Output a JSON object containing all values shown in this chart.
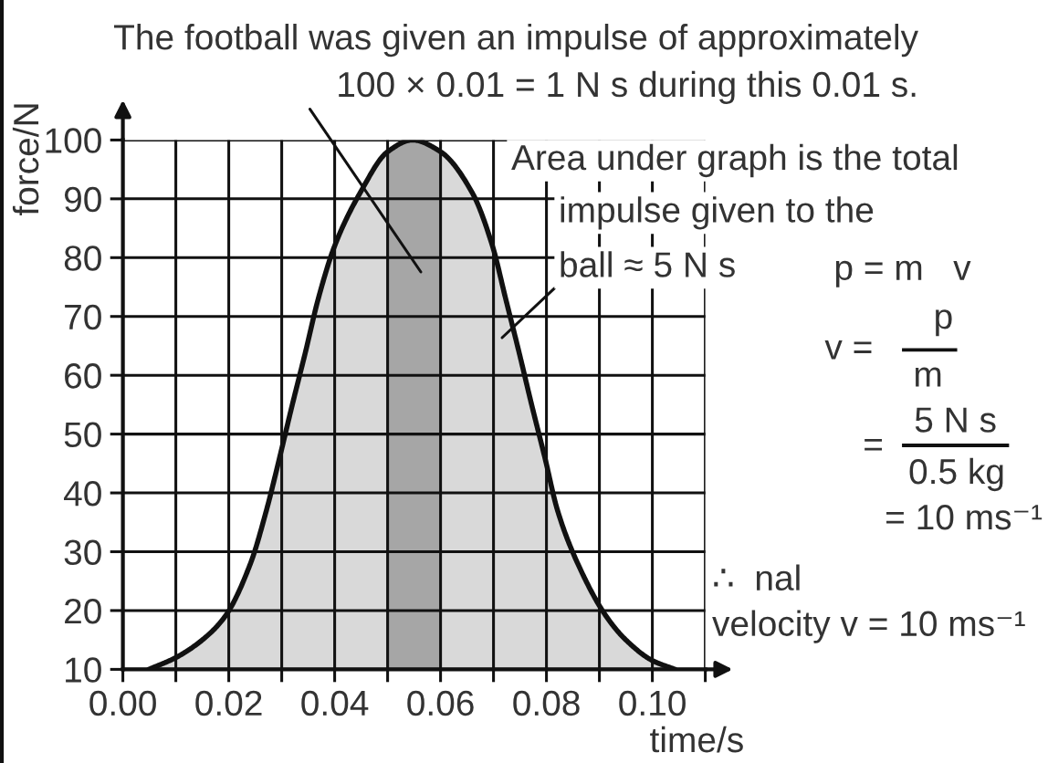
{
  "chart_data": {
    "type": "area",
    "xlabel": "time/s",
    "ylabel": "force/N",
    "x": [
      0.0049,
      0.01,
      0.015,
      0.0193,
      0.0241,
      0.0271,
      0.0296,
      0.032,
      0.0345,
      0.0369,
      0.04,
      0.0448,
      0.05,
      0.0547,
      0.06,
      0.066,
      0.0698,
      0.0723,
      0.0748,
      0.0772,
      0.0797,
      0.0821,
      0.0859,
      0.0913,
      0.095,
      0.1,
      0.1043
    ],
    "values": [
      10,
      12,
      15,
      19,
      28,
      37,
      46,
      55,
      64,
      73,
      82,
      91,
      98,
      100,
      98,
      91,
      82,
      73,
      64,
      55,
      46,
      37,
      28,
      19,
      15,
      11.5,
      10
    ],
    "color": "#d9d9d9",
    "xlim": [
      0,
      0.11
    ],
    "ylim": [
      10,
      100
    ],
    "xticks": [
      {
        "value": 0,
        "label": "0.00"
      },
      {
        "value": 0.01,
        "label": null
      },
      {
        "value": 0.02,
        "label": "0.02"
      },
      {
        "value": 0.03,
        "label": null
      },
      {
        "value": 0.04,
        "label": "0.04"
      },
      {
        "value": 0.05,
        "label": null
      },
      {
        "value": 0.06,
        "label": "0.06"
      },
      {
        "value": 0.07,
        "label": null
      },
      {
        "value": 0.08,
        "label": "0.08"
      },
      {
        "value": 0.09,
        "label": null
      },
      {
        "value": 0.1,
        "label": "0.10"
      },
      {
        "value": 0.11,
        "label": null
      }
    ],
    "yticks": [
      10,
      20,
      30,
      40,
      50,
      60,
      70,
      80,
      90,
      100
    ],
    "grid": true,
    "bands": [
      {
        "axis": "x",
        "from": 0.05,
        "to": 0.06,
        "color": "#a6a6a6"
      }
    ],
    "annotations": [
      "The football was given an impulse of approximately\n100 × 0.01 = 1 N s during this 0.01 s.",
      "Area under graph is the total",
      "impulse given to the",
      "ball ≈ 5 N s",
      "p = m   v",
      "v =",
      "p",
      "m",
      "=",
      "5 N s",
      "0.5 kg",
      "= 10 ms⁻¹",
      "∴  nal",
      "velocity v = 10 ms⁻¹"
    ]
  }
}
